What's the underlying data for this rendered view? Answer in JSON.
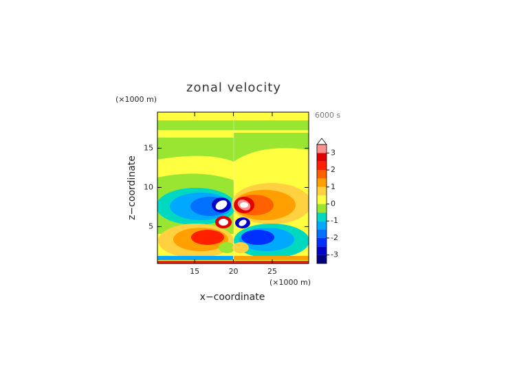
{
  "chart_data": {
    "type": "contour",
    "title": "zonal velocity",
    "x_label": "x−coordinate",
    "y_label": "z−coordinate",
    "x_unit_label": "(×1000 m)",
    "y_unit_label": "(×1000 m)",
    "time_label": "6000 s",
    "xlim": [
      10.2,
      29.7
    ],
    "xticks": [
      15,
      20,
      25
    ],
    "ylim": [
      0.3,
      19.6
    ],
    "yticks": [
      5,
      10,
      15
    ],
    "colorbar": {
      "levels": [
        -3.5,
        -3,
        -2.5,
        -2,
        -1.5,
        -1,
        -0.5,
        0,
        0.5,
        1,
        1.5,
        2,
        2.5,
        3,
        3.5
      ],
      "colors": [
        "#000080",
        "#0000c8",
        "#0030ff",
        "#0070ff",
        "#00a8ff",
        "#00d8c0",
        "#99e632",
        "#ffff40",
        "#ffd040",
        "#ffa000",
        "#ff6000",
        "#ff2000",
        "#e00000",
        "#ff9090"
      ],
      "over_color": "#ffffff",
      "ticks": [
        -3,
        -2,
        -1,
        0,
        1,
        2,
        3
      ]
    }
  }
}
